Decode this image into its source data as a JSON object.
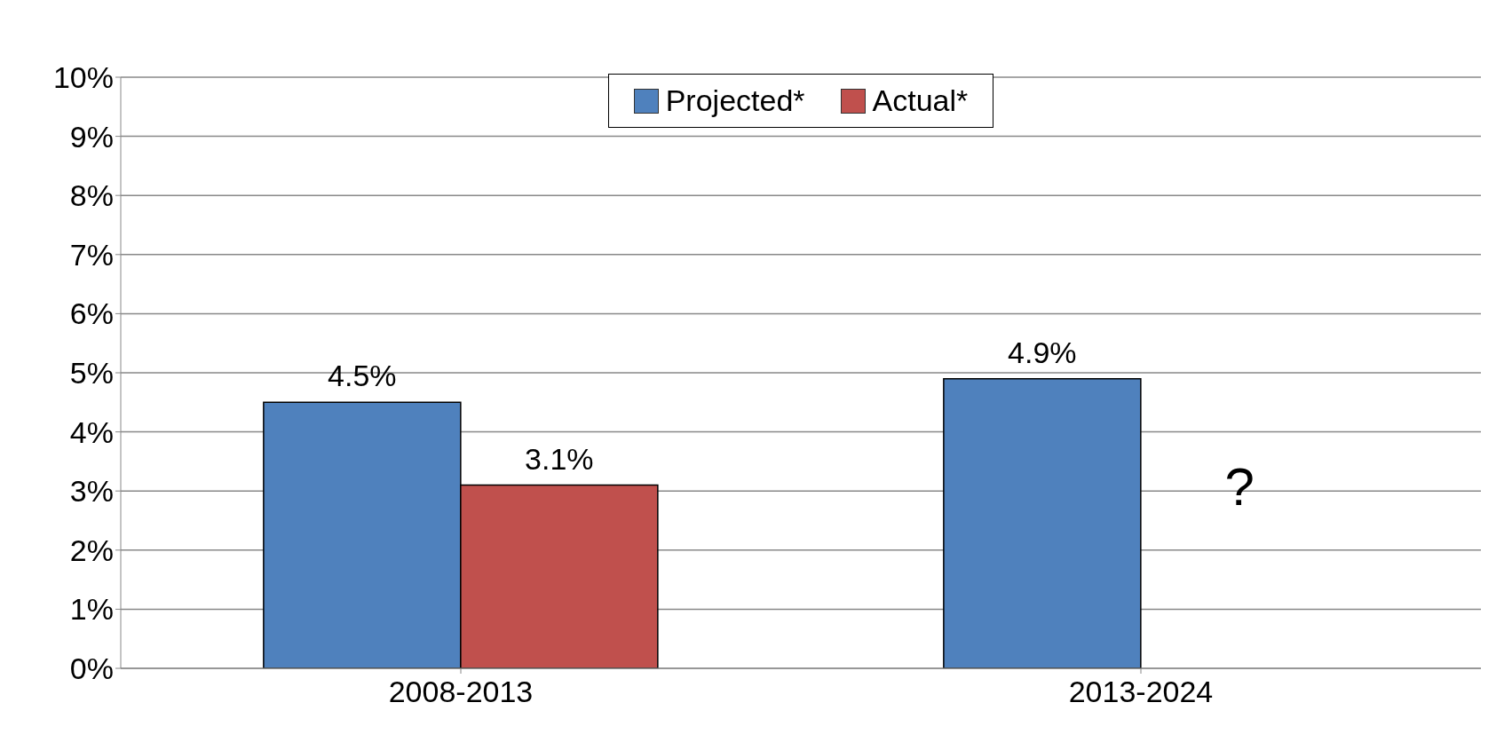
{
  "chart_data": {
    "type": "bar",
    "categories": [
      "2008-2013",
      "2013-2024"
    ],
    "series": [
      {
        "name": "Projected*",
        "color": "#4f81bd",
        "values": [
          4.5,
          4.9
        ],
        "value_labels": [
          "4.5%",
          "4.9%"
        ]
      },
      {
        "name": "Actual*",
        "color": "#c0504d",
        "values": [
          3.1,
          null
        ],
        "value_labels": [
          "3.1%",
          null
        ]
      }
    ],
    "ylim": [
      0,
      10
    ],
    "yticks": [
      {
        "value": 0,
        "label": "0%"
      },
      {
        "value": 1,
        "label": "1%"
      },
      {
        "value": 2,
        "label": "2%"
      },
      {
        "value": 3,
        "label": "3%"
      },
      {
        "value": 4,
        "label": "4%"
      },
      {
        "value": 5,
        "label": "5%"
      },
      {
        "value": 6,
        "label": "6%"
      },
      {
        "value": 7,
        "label": "7%"
      },
      {
        "value": 8,
        "label": "8%"
      },
      {
        "value": 9,
        "label": "9%"
      },
      {
        "value": 10,
        "label": "10%"
      }
    ],
    "annotations": [
      {
        "text": "?",
        "x": "2013-2024",
        "y": 3
      }
    ],
    "grid": "y",
    "legend": "top"
  }
}
